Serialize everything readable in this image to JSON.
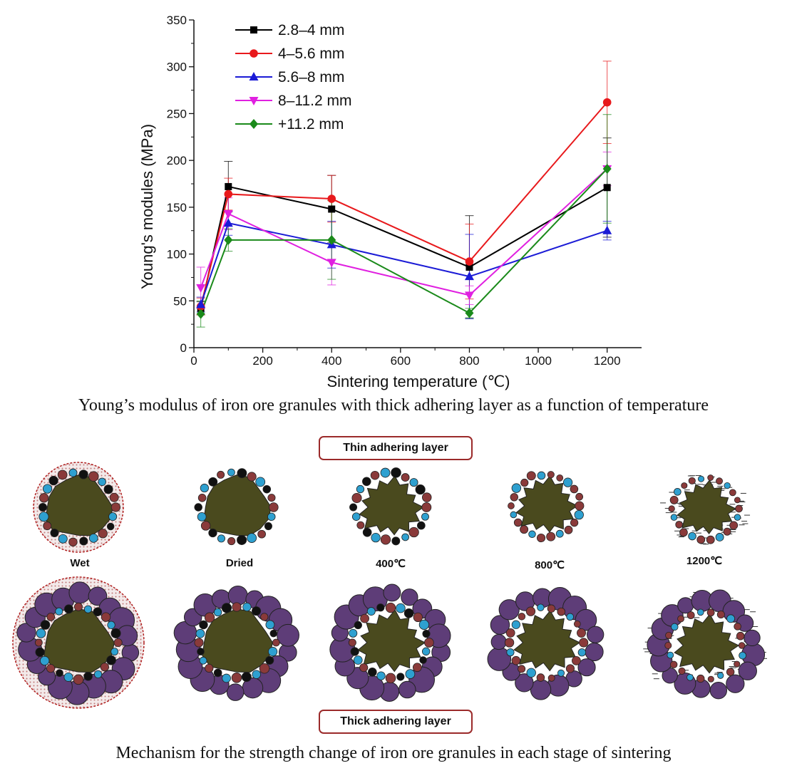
{
  "chart_data": {
    "type": "line",
    "x": [
      20,
      100,
      400,
      800,
      1200
    ],
    "xlabel": "Sintering temperature (℃)",
    "ylabel": "Young's modules (MPa)",
    "xlim": [
      0,
      1300
    ],
    "ylim": [
      0,
      350
    ],
    "xticks": [
      "0",
      "200",
      "400",
      "600",
      "800",
      "1000",
      "1200"
    ],
    "yticks": [
      "0",
      "50",
      "100",
      "150",
      "200",
      "250",
      "300",
      "350"
    ],
    "legend_position": "top-left",
    "series": [
      {
        "name": "2.8–4 mm",
        "color": "#000000",
        "marker": "square",
        "values": [
          42,
          172,
          148,
          86,
          171
        ],
        "errors": [
          7,
          27,
          36,
          55,
          53
        ]
      },
      {
        "name": "4–5.6 mm",
        "color": "#e8191c",
        "marker": "circle",
        "values": [
          44,
          164,
          159,
          92,
          262
        ],
        "errors": [
          9,
          17,
          25,
          40,
          44
        ]
      },
      {
        "name": "5.6–8 mm",
        "color": "#1b1bd6",
        "marker": "triangle-up",
        "values": [
          46,
          133,
          110,
          76,
          125
        ],
        "errors": [
          8,
          13,
          25,
          45,
          10
        ]
      },
      {
        "name": "8–11.2 mm",
        "color": "#e020e0",
        "marker": "triangle-down",
        "values": [
          64,
          143,
          91,
          56,
          191
        ],
        "errors": [
          22,
          17,
          24,
          10,
          18
        ]
      },
      {
        "name": "+11.2 mm",
        "color": "#1a8a1a",
        "marker": "diamond",
        "values": [
          36,
          115,
          115,
          37,
          191
        ],
        "errors": [
          14,
          12,
          42,
          5,
          58
        ]
      }
    ]
  },
  "captions": {
    "chart": "Young’s modulus of iron ore granules with thick adhering layer as a function of temperature",
    "mechanism": "Mechanism for the strength change of iron ore granules in each stage of sintering"
  },
  "mechanism": {
    "thin_label": "Thin adhering layer",
    "thick_label": "Thick adhering layer",
    "stages": [
      "Wet",
      "Dried",
      "400℃",
      "800℃",
      "1200℃"
    ]
  },
  "colors": {
    "core": "#4a4a1e",
    "fines_brown": "#8a3a3a",
    "fines_blue": "#2ea0d0",
    "fines_black": "#111111",
    "coarse_purple": "#5e3d78",
    "moisture_border": "#b02020"
  }
}
